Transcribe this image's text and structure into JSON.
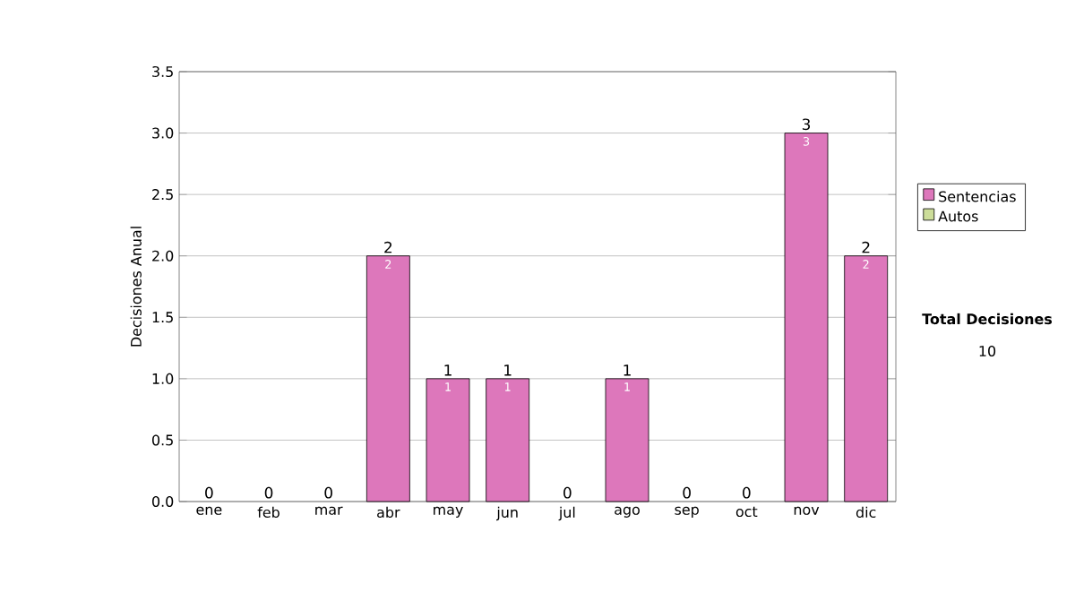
{
  "chart_data": {
    "type": "bar",
    "stacked": true,
    "ylabel": "Decisiones Anual",
    "categories": [
      "ene",
      "feb",
      "mar",
      "abr",
      "may",
      "jun",
      "jul",
      "ago",
      "sep",
      "oct",
      "nov",
      "dic"
    ],
    "series": [
      {
        "name": "Sentencias",
        "color": "#dd77bb",
        "values": [
          0,
          0,
          0,
          2,
          1,
          1,
          0,
          1,
          0,
          0,
          3,
          2
        ],
        "value_labels": [
          null,
          null,
          null,
          "2",
          "1",
          "1",
          null,
          "1",
          null,
          null,
          "3",
          "2"
        ]
      },
      {
        "name": "Autos",
        "color": "#ccdd99",
        "values": [
          0,
          0,
          0,
          0,
          0,
          0,
          0,
          0,
          0,
          0,
          0,
          0
        ]
      }
    ],
    "totals": [
      "0",
      "0",
      "0",
      "2",
      "1",
      "1",
      "0",
      "1",
      "0",
      "0",
      "3",
      "2"
    ],
    "ylim": [
      0,
      3.5
    ],
    "yticks": [
      {
        "value": 0,
        "label": "0.0"
      },
      0.5,
      {
        "value": 1,
        "label": "1.0"
      },
      1.5,
      {
        "value": 2,
        "label": "2.0"
      },
      2.5,
      {
        "value": 3,
        "label": "3.0"
      },
      3.5
    ],
    "grid": "y",
    "legend": "right",
    "annotations": [
      "Total Decisiones",
      "10"
    ]
  }
}
